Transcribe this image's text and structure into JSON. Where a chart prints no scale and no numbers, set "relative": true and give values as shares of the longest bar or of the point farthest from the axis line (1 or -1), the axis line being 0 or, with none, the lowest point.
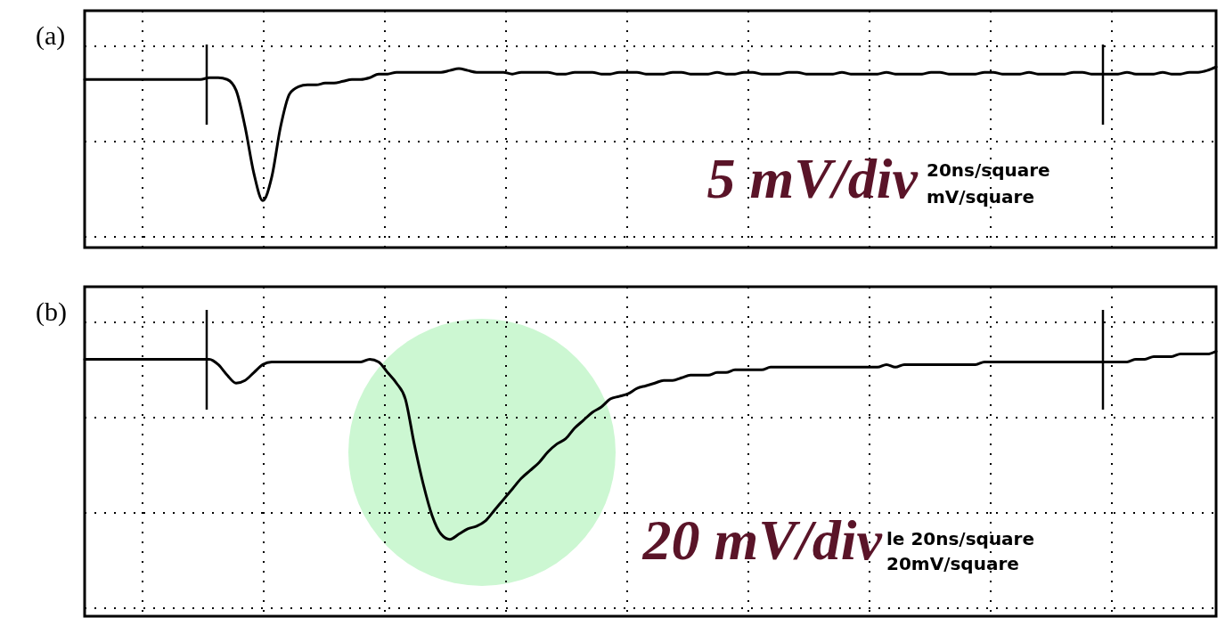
{
  "chart_data": [
    {
      "type": "line",
      "title": "(a)",
      "relative": true,
      "grid": true,
      "categories": [
        null,
        null,
        null,
        null,
        null,
        null,
        null,
        null,
        null,
        null,
        null,
        null,
        null,
        null,
        null,
        null,
        null,
        null,
        null,
        null,
        null,
        null,
        null,
        null,
        null,
        null,
        null,
        null,
        null,
        null,
        null,
        null,
        null,
        null,
        null,
        null,
        null,
        null,
        null,
        null,
        null,
        null,
        null,
        null,
        null,
        null,
        null,
        null,
        null,
        null,
        null,
        null,
        null,
        null,
        null,
        null,
        null,
        null,
        null,
        null,
        null,
        null,
        null,
        null,
        null,
        null,
        null,
        null,
        null,
        null,
        null,
        null,
        null,
        null,
        null,
        null,
        null,
        null,
        null,
        null,
        null,
        null,
        null,
        null,
        null,
        null,
        null,
        null,
        null,
        null,
        null,
        null,
        null,
        null,
        null,
        null,
        null,
        null,
        null,
        null,
        null,
        null,
        null,
        null,
        null,
        null,
        null,
        null,
        null,
        null,
        null,
        null,
        null,
        null,
        null,
        null,
        null,
        null,
        null,
        null,
        null,
        null,
        null,
        null,
        null,
        null,
        null,
        null
      ],
      "series": [
        {
          "color": "#000000",
          "values": [
            0.93,
            0.93,
            0.93,
            0.93,
            0.93,
            0.93,
            0.93,
            0.93,
            0.93,
            0.93,
            0.93,
            0.93,
            0.93,
            0.93,
            0.94,
            0.94,
            0.93,
            0.87,
            0.67,
            0.41,
            0.26,
            0.39,
            0.67,
            0.85,
            0.89,
            0.9,
            0.9,
            0.91,
            0.91,
            0.92,
            0.93,
            0.93,
            0.94,
            0.96,
            0.96,
            0.97,
            0.97,
            0.97,
            0.97,
            0.97,
            0.97,
            0.98,
            0.99,
            0.98,
            0.97,
            0.97,
            0.97,
            0.97,
            0.96,
            0.97,
            0.97,
            0.97,
            0.97,
            0.96,
            0.96,
            0.97,
            0.97,
            0.97,
            0.96,
            0.96,
            0.97,
            0.97,
            0.97,
            0.96,
            0.96,
            0.96,
            0.97,
            0.97,
            0.96,
            0.96,
            0.96,
            0.97,
            0.96,
            0.96,
            0.97,
            0.97,
            0.96,
            0.96,
            0.96,
            0.97,
            0.97,
            0.96,
            0.96,
            0.96,
            0.96,
            0.97,
            0.96,
            0.96,
            0.96,
            0.96,
            0.97,
            0.96,
            0.96,
            0.96,
            0.96,
            0.97,
            0.97,
            0.96,
            0.96,
            0.96,
            0.96,
            0.97,
            0.97,
            0.96,
            0.96,
            0.96,
            0.97,
            0.96,
            0.96,
            0.96,
            0.96,
            0.97,
            0.97,
            0.96,
            0.96,
            0.96,
            0.96,
            0.97,
            0.96,
            0.96,
            0.96,
            0.97,
            0.96,
            0.96,
            0.97,
            0.97,
            0.98,
            1.0
          ]
        }
      ],
      "annotations": [
        "5 mV/div",
        "20ns/square",
        "mV/square"
      ]
    },
    {
      "type": "line",
      "title": "(b)",
      "relative": true,
      "grid": true,
      "categories": [
        null,
        null,
        null,
        null,
        null,
        null,
        null,
        null,
        null,
        null,
        null,
        null,
        null,
        null,
        null,
        null,
        null,
        null,
        null,
        null,
        null,
        null,
        null,
        null,
        null,
        null,
        null,
        null,
        null,
        null,
        null,
        null,
        null,
        null,
        null,
        null,
        null,
        null,
        null,
        null,
        null,
        null,
        null,
        null,
        null,
        null,
        null,
        null,
        null,
        null,
        null,
        null,
        null,
        null,
        null,
        null,
        null,
        null,
        null,
        null,
        null,
        null,
        null,
        null,
        null,
        null,
        null,
        null,
        null,
        null,
        null,
        null,
        null,
        null,
        null,
        null,
        null,
        null,
        null,
        null,
        null,
        null,
        null,
        null,
        null,
        null,
        null,
        null,
        null,
        null,
        null,
        null,
        null,
        null,
        null,
        null,
        null,
        null,
        null,
        null,
        null,
        null,
        null,
        null,
        null,
        null,
        null,
        null,
        null,
        null,
        null,
        null,
        null,
        null,
        null,
        null,
        null,
        null,
        null,
        null,
        null,
        null,
        null,
        null,
        null,
        null,
        null,
        null
      ],
      "series": [
        {
          "color": "#000000",
          "values": [
            0.97,
            0.97,
            0.97,
            0.97,
            0.97,
            0.97,
            0.97,
            0.97,
            0.97,
            0.97,
            0.97,
            0.97,
            0.97,
            0.97,
            0.97,
            0.95,
            0.91,
            0.88,
            0.89,
            0.92,
            0.95,
            0.96,
            0.96,
            0.96,
            0.96,
            0.96,
            0.96,
            0.96,
            0.96,
            0.96,
            0.96,
            0.96,
            0.97,
            0.96,
            0.92,
            0.88,
            0.82,
            0.65,
            0.5,
            0.38,
            0.31,
            0.29,
            0.31,
            0.33,
            0.34,
            0.36,
            0.4,
            0.44,
            0.48,
            0.52,
            0.55,
            0.58,
            0.62,
            0.65,
            0.67,
            0.71,
            0.74,
            0.77,
            0.79,
            0.82,
            0.83,
            0.84,
            0.86,
            0.87,
            0.88,
            0.89,
            0.89,
            0.9,
            0.91,
            0.91,
            0.91,
            0.92,
            0.92,
            0.93,
            0.93,
            0.93,
            0.93,
            0.94,
            0.94,
            0.94,
            0.94,
            0.94,
            0.94,
            0.94,
            0.94,
            0.94,
            0.94,
            0.94,
            0.94,
            0.94,
            0.95,
            0.94,
            0.95,
            0.95,
            0.95,
            0.95,
            0.95,
            0.95,
            0.95,
            0.95,
            0.95,
            0.96,
            0.96,
            0.96,
            0.96,
            0.96,
            0.96,
            0.96,
            0.96,
            0.96,
            0.96,
            0.96,
            0.96,
            0.96,
            0.96,
            0.96,
            0.96,
            0.96,
            0.97,
            0.97,
            0.98,
            0.98,
            0.98,
            0.99,
            0.99,
            0.99,
            0.99,
            1.0
          ]
        }
      ],
      "annotations": [
        "20 mV/div",
        "le 20ns/square",
        "20mV/square"
      ]
    }
  ]
}
